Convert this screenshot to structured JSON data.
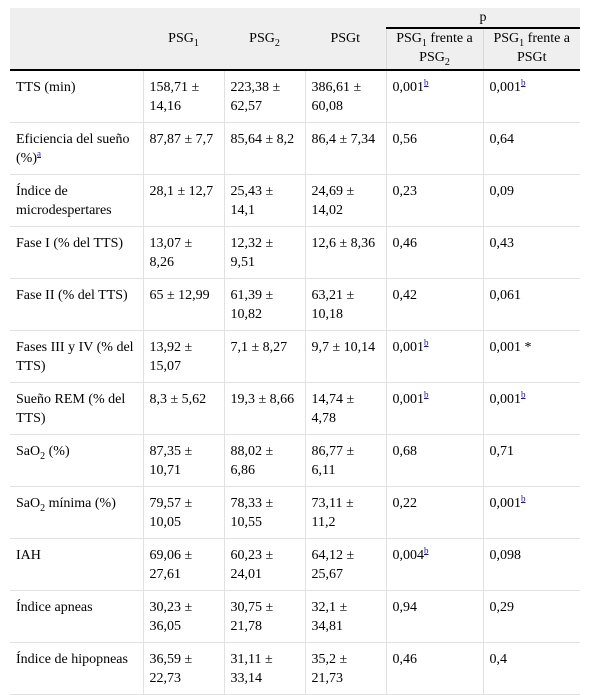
{
  "header": {
    "p_label": "p",
    "col_psg1": "PSG",
    "col_psg1_sub": "1",
    "col_psg2": "PSG",
    "col_psg2_sub": "2",
    "col_psgt": "PSGt",
    "cmp1_a": "PSG",
    "cmp1_a_sub": "1",
    "cmp1_b": " frente a PSG",
    "cmp1_b_sub": "2",
    "cmp2_a": "PSG",
    "cmp2_a_sub": "1",
    "cmp2_b": " frente a PSGt"
  },
  "rows": [
    {
      "label": "TTS (min)",
      "psg1": "158,71 ± 14,16",
      "psg2": "223,38 ± 62,57",
      "psgt": "386,61 ± 60,08",
      "p1": "0,001",
      "p1_sup": "b",
      "p2": "0,001",
      "p2_sup": "b"
    },
    {
      "label": "Eficiencia del sueño (%)",
      "label_sup": "a",
      "psg1": "87,87 ± 7,7",
      "psg2": "85,64 ± 8,2",
      "psgt": "86,4 ± 7,34",
      "p1": "0,56",
      "p2": "0,64"
    },
    {
      "label": "Índice de microdespertares",
      "psg1": "28,1 ± 12,7",
      "psg2": "25,43 ± 14,1",
      "psgt": "24,69 ± 14,02",
      "p1": "0,23",
      "p2": "0,09"
    },
    {
      "label": "Fase I (% del TTS)",
      "psg1": "13,07 ± 8,26",
      "psg2": "12,32 ± 9,51",
      "psgt": "12,6 ± 8,36",
      "p1": "0,46",
      "p2": "0,43"
    },
    {
      "label": "Fase II (% del TTS)",
      "psg1": "65 ± 12,99",
      "psg2": "61,39 ± 10,82",
      "psgt": "63,21 ± 10,18",
      "p1": "0,42",
      "p2": "0,061"
    },
    {
      "label": "Fases III y IV (% del TTS)",
      "psg1": "13,92 ± 15,07",
      "psg2": "7,1 ± 8,27",
      "psgt": "9,7 ± 10,14",
      "p1": "0,001",
      "p1_sup": "b",
      "p2": "0,001 *"
    },
    {
      "label": "Sueño REM (% del TTS)",
      "psg1": "8,3 ± 5,62",
      "psg2": "19,3 ± 8,66",
      "psgt": "14,74 ± 4,78",
      "p1": "0,001",
      "p1_sup": "b",
      "p2": "0,001",
      "p2_sup": "b"
    },
    {
      "label": "SaO",
      "label_sub": "2",
      "label_rest": " (%)",
      "psg1": "87,35 ± 10,71",
      "psg2": "88,02 ± 6,86",
      "psgt": "86,77 ± 6,11",
      "p1": "0,68",
      "p2": "0,71"
    },
    {
      "label": "SaO",
      "label_sub": "2",
      "label_rest": " mínima (%)",
      "psg1": "79,57 ± 10,05",
      "psg2": "78,33 ± 10,55",
      "psgt": "73,11 ± 11,2",
      "p1": "0,22",
      "p2": "0,001",
      "p2_sup": "b"
    },
    {
      "label": "IAH",
      "psg1": "69,06 ± 27,61",
      "psg2": "60,23 ± 24,01",
      "psgt": "64,12 ± 25,67",
      "p1": "0,004",
      "p1_sup": "b",
      "p2": "0,098"
    },
    {
      "label": "Índice apneas",
      "psg1": "30,23 ± 36,05",
      "psg2": "30,75 ± 21,78",
      "psgt": "32,1 ± 34,81",
      "p1": "0,94",
      "p2": "0,29"
    },
    {
      "label": "Índice de hipopneas",
      "psg1": "36,59 ± 22,73",
      "psg2": "31,11 ± 33,14",
      "psgt": "35,2 ± 21,73",
      "p1": "0,46",
      "p2": "0,4"
    }
  ]
}
